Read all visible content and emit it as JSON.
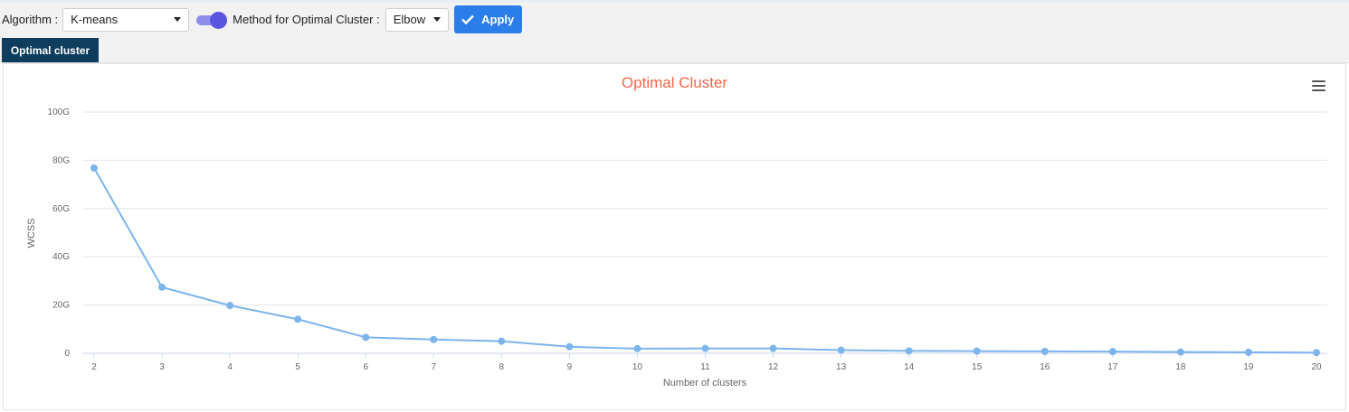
{
  "toolbar": {
    "algorithm_label": "Algorithm :",
    "algorithm_value": "K-means",
    "method_label": "Method for Optimal Cluster :",
    "method_value": "Elbow",
    "apply_label": "Apply",
    "toggle_on": true
  },
  "tabs": [
    {
      "label": "Optimal cluster",
      "active": true
    }
  ],
  "colors": {
    "accent": "#2b7de9",
    "tab_active": "#0f3d5e",
    "title": "#f4664a",
    "series": "#7cb5ec",
    "toggle": "#5a55e0"
  },
  "chart_data": {
    "type": "line",
    "title": "Optimal Cluster",
    "xlabel": "Number of clusters",
    "ylabel": "WCSS",
    "x": [
      2,
      3,
      4,
      5,
      6,
      7,
      8,
      9,
      10,
      11,
      12,
      13,
      14,
      15,
      16,
      17,
      18,
      19,
      20
    ],
    "series": [
      {
        "values": [
          76.8,
          27.4,
          19.8,
          14.1,
          6.6,
          5.7,
          5.0,
          2.7,
          1.9,
          2.0,
          2.0,
          1.3,
          1.0,
          0.9,
          0.8,
          0.7,
          0.5,
          0.4,
          0.3
        ]
      }
    ],
    "ylim": [
      0,
      100
    ],
    "yticks": [
      0,
      20,
      40,
      60,
      80,
      100
    ],
    "ytick_labels": [
      "0",
      "20G",
      "40G",
      "60G",
      "80G",
      "100G"
    ],
    "grid": true,
    "legend": "none"
  }
}
